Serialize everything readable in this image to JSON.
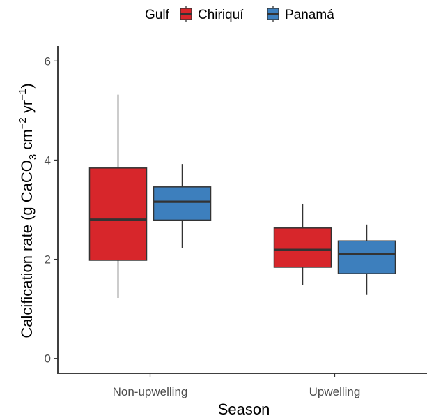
{
  "chart_data": {
    "type": "boxplot",
    "xlabel": "Season",
    "ylabel_main": "Calcification rate (g CaCO",
    "ylabel_sub1": "3",
    "ylabel_mid": " cm",
    "ylabel_sup1": "−2",
    "ylabel_mid2": " yr",
    "ylabel_sup2": "−1",
    "ylabel_end": ")",
    "ylim": [
      -0.3,
      6.3
    ],
    "yticks": [
      0,
      2,
      4,
      6
    ],
    "ytick_labels": [
      "0",
      "2",
      "4",
      "6"
    ],
    "categories": [
      "Non-upwelling",
      "Upwelling"
    ],
    "grid": false,
    "legend": {
      "title": "Gulf",
      "position": "top"
    },
    "series": [
      {
        "name": "Chiriquí",
        "color": "#d7262b",
        "boxes": [
          {
            "category": "Non-upwelling",
            "min": 1.22,
            "q1": 1.98,
            "median": 2.8,
            "q3": 3.84,
            "max": 5.32
          },
          {
            "category": "Upwelling",
            "min": 1.48,
            "q1": 1.84,
            "median": 2.19,
            "q3": 2.63,
            "max": 3.12
          }
        ]
      },
      {
        "name": "Panamá",
        "color": "#3d7fbd",
        "boxes": [
          {
            "category": "Non-upwelling",
            "min": 2.23,
            "q1": 2.79,
            "median": 3.16,
            "q3": 3.46,
            "max": 3.92
          },
          {
            "category": "Upwelling",
            "min": 1.28,
            "q1": 1.71,
            "median": 2.1,
            "q3": 2.37,
            "max": 2.7
          }
        ]
      }
    ]
  }
}
